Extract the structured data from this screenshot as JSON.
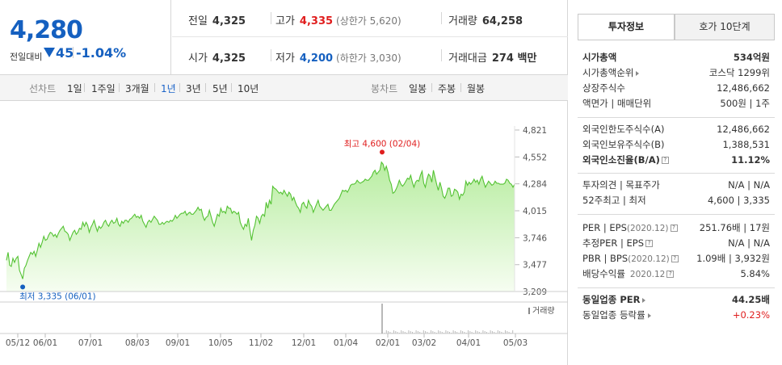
{
  "summary": {
    "current_price": "4,280",
    "change_label": "전일대비",
    "change_value": "45",
    "change_pct": "-1.04%",
    "row1": [
      {
        "label": "전일",
        "value": "4,325",
        "sub": "",
        "color": "normal"
      },
      {
        "label": "고가",
        "value": "4,335",
        "sub": "(상한가 5,620)",
        "color": "up"
      },
      {
        "label": "거래량",
        "value": "64,258",
        "sub": "",
        "color": "normal"
      }
    ],
    "row2": [
      {
        "label": "시가",
        "value": "4,325",
        "sub": "",
        "color": "normal"
      },
      {
        "label": "저가",
        "value": "4,200",
        "sub": "(하한가 3,030)",
        "color": "down"
      },
      {
        "label": "거래대금",
        "value": "274 백만",
        "sub": "",
        "color": "normal"
      }
    ]
  },
  "tabs": {
    "line_chart": "선차트",
    "periods": [
      "1일",
      "1주일",
      "3개월",
      "1년",
      "3년",
      "5년",
      "10년"
    ],
    "active_period": "1년",
    "candle_chart": "봉차트",
    "candle_periods": [
      "일봉",
      "주봉",
      "월봉"
    ]
  },
  "chart_data": {
    "type": "area",
    "title": "",
    "xlabel": "",
    "ylabel": "",
    "ylim": [
      3209,
      4821
    ],
    "y_ticks": [
      "4,821",
      "4,552",
      "4,284",
      "4,015",
      "3,746",
      "3,477",
      "3,209"
    ],
    "x_ticks": [
      "05/12",
      "06/01",
      "07/01",
      "08/03",
      "09/01",
      "10/05",
      "11/02",
      "12/01",
      "01/04",
      "02/01",
      "03/02",
      "04/01",
      "05/03"
    ],
    "high_label": "최고 4,600 (02/04)",
    "low_label": "최저 3,335 (06/01)",
    "volume_label": "거래량",
    "series": [
      {
        "values": [
          3520,
          3600,
          3470,
          3460,
          3540,
          3500,
          3540,
          3560,
          3420,
          3380,
          3335,
          3440,
          3470,
          3520,
          3560,
          3600,
          3580,
          3610,
          3560,
          3620,
          3690,
          3650,
          3700,
          3760,
          3720,
          3730,
          3770,
          3800,
          3790,
          3760,
          3780,
          3750,
          3790,
          3820,
          3840,
          3860,
          3810,
          3800,
          3780,
          3720,
          3760,
          3800,
          3820,
          3780,
          3800,
          3840,
          3830,
          3900,
          3860,
          3900,
          3870,
          3800,
          3850,
          3880,
          3920,
          3860,
          3810,
          3860,
          3840,
          3860,
          3900,
          3920,
          3880,
          3860,
          3900,
          3920,
          3890,
          3900,
          3940,
          3880,
          3860,
          3910,
          3890,
          3920,
          3920,
          3900,
          3930,
          3940,
          3960,
          3980,
          3950,
          3960,
          3940,
          3970,
          3910,
          3880,
          3850,
          3900,
          3920,
          3900,
          3930,
          3960,
          3940,
          3920,
          3880,
          3880,
          3900,
          3880,
          3900,
          3910,
          3900,
          3920,
          3910,
          3930,
          3970,
          3940,
          3960,
          3980,
          3990,
          3990,
          4010,
          3970,
          3990,
          4000,
          3980,
          3980,
          4000,
          4020,
          4050,
          4020,
          4030,
          3960,
          3920,
          3950,
          3960,
          4020,
          3960,
          3900,
          3860,
          3920,
          3980,
          3960,
          4040,
          4000,
          4010,
          3990,
          4060,
          4040,
          4040,
          3990,
          4010,
          4000,
          3980,
          4000,
          3900,
          3860,
          3830,
          3880,
          3860,
          3940,
          3820,
          3720,
          3820,
          3870,
          3960,
          3940,
          3890,
          3960,
          3980,
          3960,
          4100,
          4040,
          4120,
          4080,
          4260,
          4240,
          4230,
          4210,
          4190,
          4200,
          4180,
          4220,
          4190,
          4160,
          4200,
          4180,
          4120,
          4150,
          4100,
          4060,
          4040,
          4000,
          4080,
          4100,
          4060,
          4040,
          4120,
          4080,
          4060,
          4000,
          4040,
          4080,
          4120,
          4060,
          4040,
          4020,
          4040,
          4060,
          4080,
          4020,
          4020,
          4050,
          4080,
          4100,
          4120,
          4140,
          4180,
          4220,
          4210,
          4220,
          4200,
          4230,
          4270,
          4280,
          4280,
          4290,
          4320,
          4300,
          4290,
          4300,
          4310,
          4330,
          4320,
          4320,
          4340,
          4360,
          4400,
          4420,
          4380,
          4400,
          4420,
          4500,
          4480,
          4420,
          4460,
          4400,
          4320,
          4280,
          4190,
          4200,
          4230,
          4270,
          4320,
          4280,
          4260,
          4280,
          4310,
          4340,
          4330,
          4370,
          4300,
          4250,
          4300,
          4320,
          4310,
          4370,
          4410,
          4290,
          4250,
          4330,
          4380,
          4360,
          4300,
          4420,
          4350,
          4280,
          4220,
          4300,
          4240,
          4160,
          4140,
          4180,
          4240,
          4240,
          4160,
          4170,
          4230,
          4220,
          4200,
          4130,
          4180,
          4170,
          4200,
          4310,
          4270,
          4300,
          4280,
          4300,
          4330,
          4300,
          4320,
          4280,
          4330,
          4360,
          4300,
          4250,
          4280,
          4310,
          4290,
          4270,
          4280,
          4310,
          4290,
          4290,
          4280,
          4280,
          4280,
          4290,
          4330,
          4320,
          4290,
          4280,
          4250,
          4280
        ]
      }
    ]
  },
  "right_panel": {
    "tab_info": "투자정보",
    "tab_quote": "호가 10단계",
    "market_cap": {
      "label": "시가총액",
      "value": "534억원"
    },
    "market_cap_rank": {
      "label": "시가총액순위",
      "value": "코스닥 1299위"
    },
    "shares": {
      "label": "상장주식수",
      "value": "12,486,662"
    },
    "face_value": {
      "label": "액면가 | 매매단위",
      "value": "500원 | 1주"
    },
    "foreign_limit": {
      "label": "외국인한도주식수(A)",
      "value": "12,486,662"
    },
    "foreign_holdings": {
      "label": "외국인보유주식수(B)",
      "value": "1,388,531"
    },
    "foreign_rate": {
      "label": "외국인소진율(B/A)",
      "value": "11.12%"
    },
    "opinion": {
      "label": "투자의견 | 목표주가",
      "value": "N/A | N/A"
    },
    "week52": {
      "label": "52주최고 | 최저",
      "value": "4,600 | 3,335"
    },
    "per": {
      "label": "PER | EPS",
      "label_sub": "(2020.12)",
      "value": "251.76배 | 17원"
    },
    "est_per": {
      "label": "추정PER | EPS",
      "value": "N/A | N/A"
    },
    "pbr": {
      "label": "PBR | BPS",
      "label_sub": "(2020.12)",
      "value": "1.09배 | 3,932원"
    },
    "dividend": {
      "label": "배당수익률",
      "label_sub": "2020.12",
      "value": "5.84%"
    },
    "peer_per": {
      "label": "동일업종 PER",
      "value": "44.25배"
    },
    "peer_change": {
      "label": "동일업종 등락률",
      "value": "+0.23%"
    }
  }
}
